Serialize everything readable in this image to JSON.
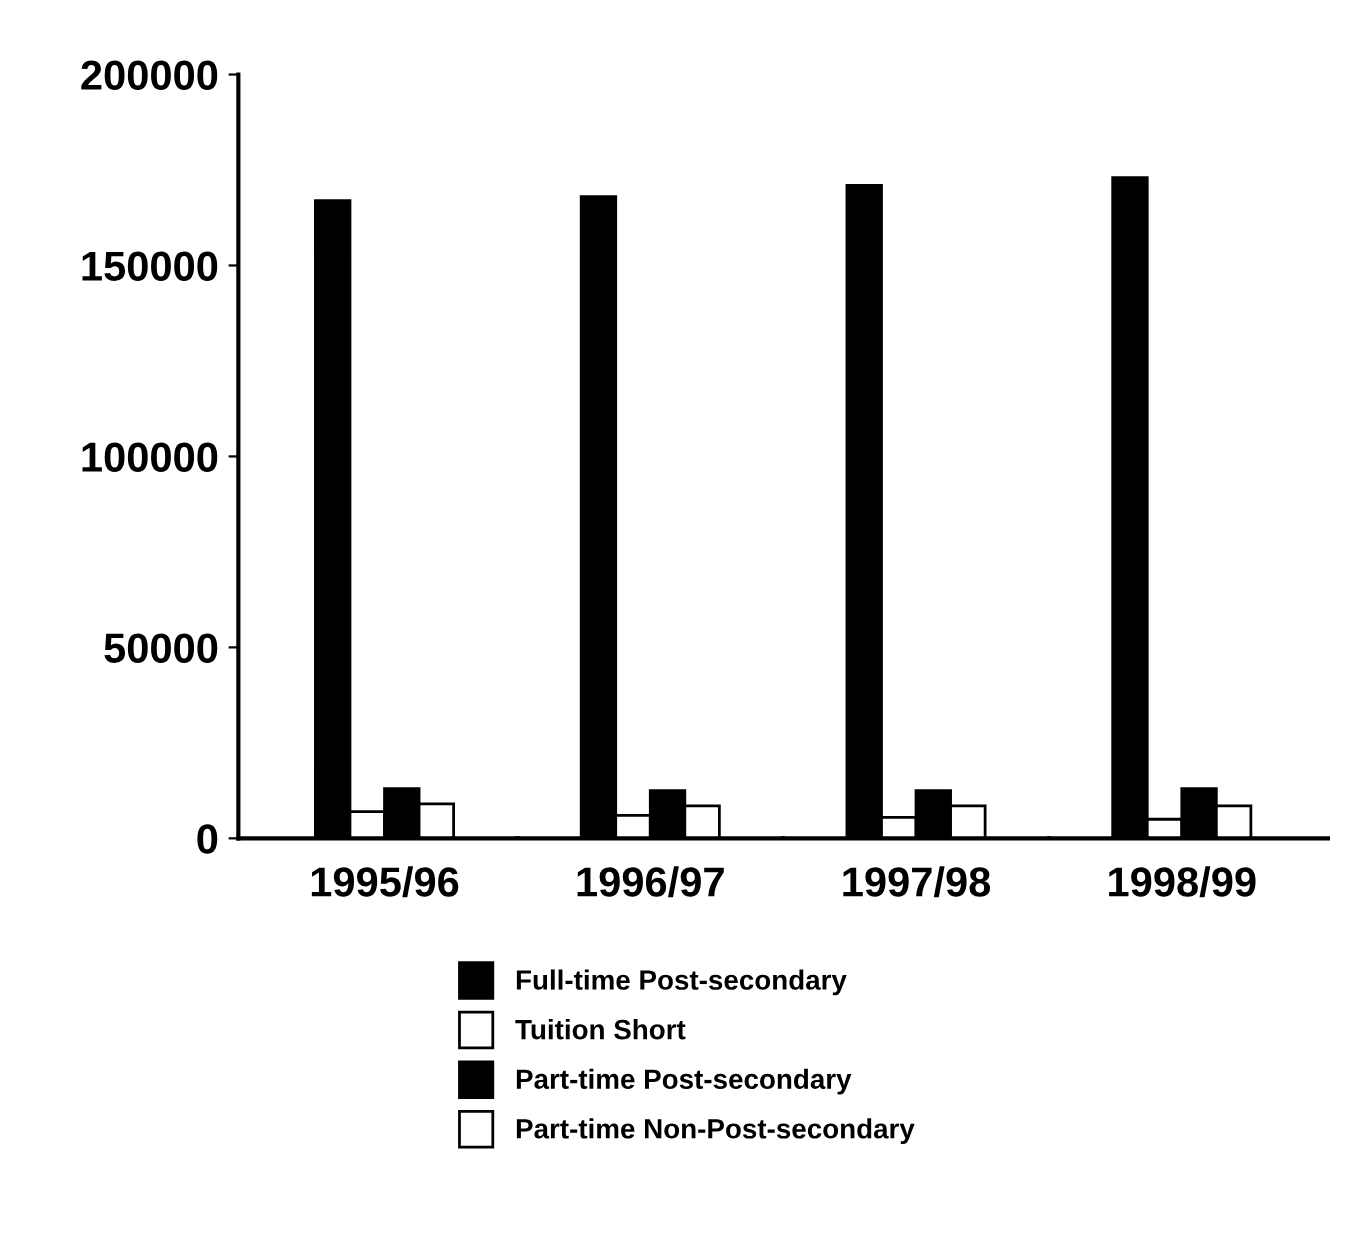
{
  "chart_data": {
    "type": "bar",
    "categories": [
      "1995/96",
      "1996/97",
      "1997/98",
      "1998/99"
    ],
    "series": [
      {
        "name": "Full-time Post-secondary",
        "color": "#000000",
        "values": [
          167000,
          168000,
          171000,
          173000
        ]
      },
      {
        "name": "Tuition Short",
        "color": "#ffffff",
        "values": [
          7000,
          6000,
          5500,
          5000
        ]
      },
      {
        "name": "Part-time Post-secondary",
        "color": "#000000",
        "values": [
          13000,
          12500,
          12500,
          13000
        ]
      },
      {
        "name": "Part-time Non-Post-secondary",
        "color": "#ffffff",
        "values": [
          9000,
          8500,
          8500,
          8500
        ]
      }
    ],
    "ylim": [
      0,
      200000
    ],
    "yticks": [
      0,
      50000,
      100000,
      150000,
      200000
    ],
    "grid": false,
    "legend": "bottom"
  }
}
